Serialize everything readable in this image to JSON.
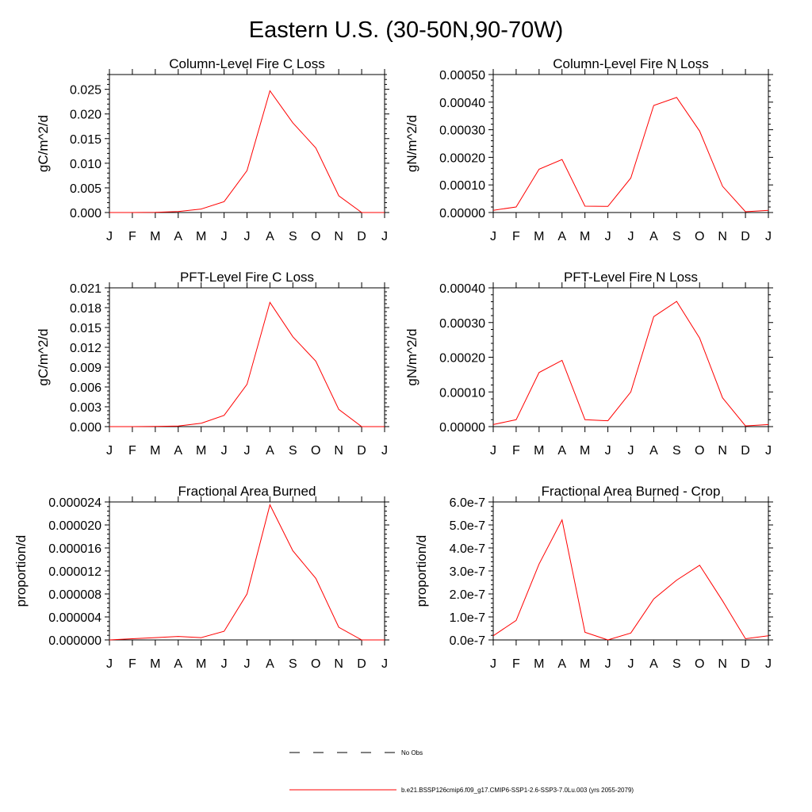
{
  "title": "Eastern U.S. (30-50N,90-70W)",
  "month_labels": [
    "J",
    "F",
    "M",
    "A",
    "M",
    "J",
    "J",
    "A",
    "S",
    "O",
    "N",
    "D",
    "J"
  ],
  "colors": {
    "series": "#ff0000",
    "obs": "#000000",
    "axis": "#000000"
  },
  "chart_data": [
    {
      "type": "line",
      "title": "Column-Level Fire C Loss",
      "ylabel": "gC/m^2/d",
      "ylim": [
        0,
        0.028
      ],
      "yticks": [
        "0.000",
        "0.005",
        "0.010",
        "0.015",
        "0.020",
        "0.025"
      ],
      "ytick_values": [
        0,
        0.005,
        0.01,
        0.015,
        0.02,
        0.025
      ],
      "values": [
        0.0,
        0.0,
        3e-05,
        0.0002,
        0.0007,
        0.0022,
        0.0085,
        0.0247,
        0.0182,
        0.0131,
        0.0034,
        0.0,
        0.0
      ]
    },
    {
      "type": "line",
      "title": "Column-Level Fire N Loss",
      "ylabel": "gN/m^2/d",
      "ylim": [
        0,
        0.0005
      ],
      "yticks": [
        "0.00000",
        "0.00010",
        "0.00020",
        "0.00030",
        "0.00040",
        "0.00050"
      ],
      "ytick_values": [
        0,
        0.0001,
        0.0002,
        0.0003,
        0.0004,
        0.0005
      ],
      "values": [
        8e-06,
        2e-05,
        0.000157,
        0.000192,
        2.3e-05,
        2.2e-05,
        0.000125,
        0.000388,
        0.000417,
        0.000295,
        9.5e-05,
        3e-06,
        8e-06
      ]
    },
    {
      "type": "line",
      "title": "PFT-Level Fire C Loss",
      "ylabel": "gC/m^2/d",
      "ylim": [
        0,
        0.021
      ],
      "yticks": [
        "0.000",
        "0.003",
        "0.006",
        "0.009",
        "0.012",
        "0.015",
        "0.018",
        "0.021"
      ],
      "ytick_values": [
        0,
        0.003,
        0.006,
        0.009,
        0.012,
        0.015,
        0.018,
        0.021
      ],
      "values": [
        0.0,
        0.0,
        2e-05,
        0.0001,
        0.0005,
        0.0017,
        0.0064,
        0.0188,
        0.0136,
        0.0099,
        0.0026,
        0.0,
        0.0
      ]
    },
    {
      "type": "line",
      "title": "PFT-Level Fire N Loss",
      "ylabel": "gN/m^2/d",
      "ylim": [
        0,
        0.0004
      ],
      "yticks": [
        "0.00000",
        "0.00010",
        "0.00020",
        "0.00030",
        "0.00040"
      ],
      "ytick_values": [
        0,
        0.0001,
        0.0002,
        0.0003,
        0.0004
      ],
      "values": [
        6e-06,
        2e-05,
        0.000156,
        0.000191,
        2e-05,
        1.7e-05,
        0.0001,
        0.000317,
        0.000361,
        0.000255,
        8.3e-05,
        2e-06,
        6e-06
      ]
    },
    {
      "type": "line",
      "title": "Fractional Area Burned",
      "ylabel": "proportion/d",
      "ylim": [
        0,
        2.4e-05
      ],
      "yticks": [
        "0.000000",
        "0.000004",
        "0.000008",
        "0.000012",
        "0.000016",
        "0.000020",
        "0.000024"
      ],
      "ytick_values": [
        0,
        4e-06,
        8e-06,
        1.2e-05,
        1.6e-05,
        2e-05,
        2.4e-05
      ],
      "values": [
        0.0,
        2e-07,
        4e-07,
        6e-07,
        4e-07,
        1.5e-06,
        8e-06,
        2.35e-05,
        1.55e-05,
        1.07e-05,
        2.2e-06,
        0.0,
        0.0
      ]
    },
    {
      "type": "line",
      "title": "Fractional Area Burned - Crop",
      "ylabel": "proportion/d",
      "ylim": [
        0,
        6e-07
      ],
      "yticks": [
        "0.0e-7",
        "1.0e-7",
        "2.0e-7",
        "3.0e-7",
        "4.0e-7",
        "5.0e-7",
        "6.0e-7"
      ],
      "ytick_values": [
        0,
        1e-07,
        2e-07,
        3e-07,
        4e-07,
        5e-07,
        6e-07
      ],
      "values": [
        1.8e-08,
        8.5e-08,
        3.3e-07,
        5.22e-07,
        3.3e-08,
        0.0,
        3e-08,
        1.78e-07,
        2.6e-07,
        3.25e-07,
        1.7e-07,
        5e-09,
        1.8e-08
      ]
    }
  ],
  "legend": {
    "obs_label": "No Obs",
    "series_label": "b.e21.BSSP126cmip6.f09_g17.CMIP6-SSP1-2.6-SSP3-7.0Lu.003 (yrs 2055-2079)"
  }
}
